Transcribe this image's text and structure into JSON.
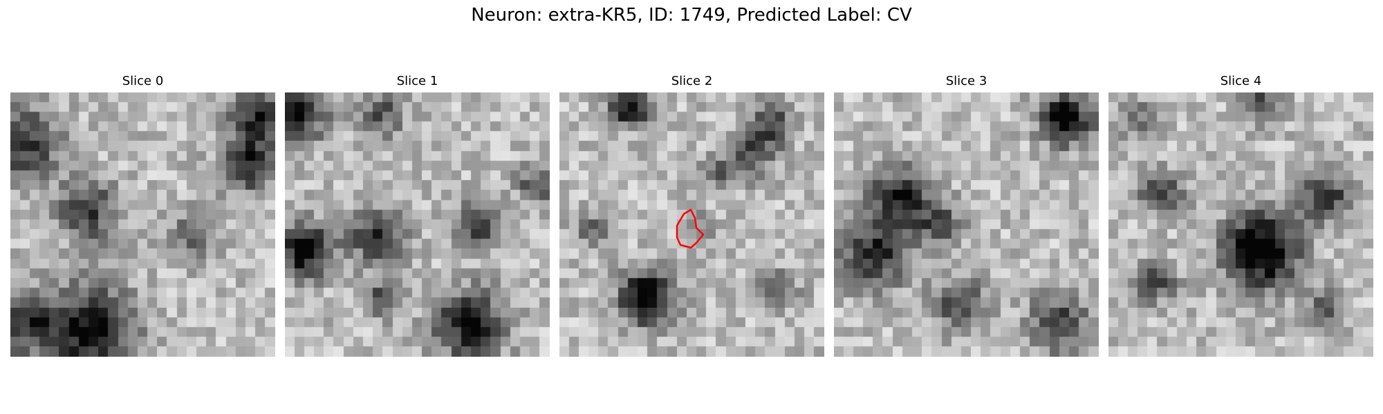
{
  "figure": {
    "title": "Neuron: extra-KR5, ID: 1749, Predicted Label: CV"
  },
  "slices": [
    {
      "label": "Slice 0",
      "seed": 11
    },
    {
      "label": "Slice 1",
      "seed": 23
    },
    {
      "label": "Slice 2",
      "seed": 37,
      "roi": true
    },
    {
      "label": "Slice 3",
      "seed": 41
    },
    {
      "label": "Slice 4",
      "seed": 59
    }
  ],
  "colors": {
    "roi_outline": "#ff0000",
    "colormap": "grayscale"
  }
}
